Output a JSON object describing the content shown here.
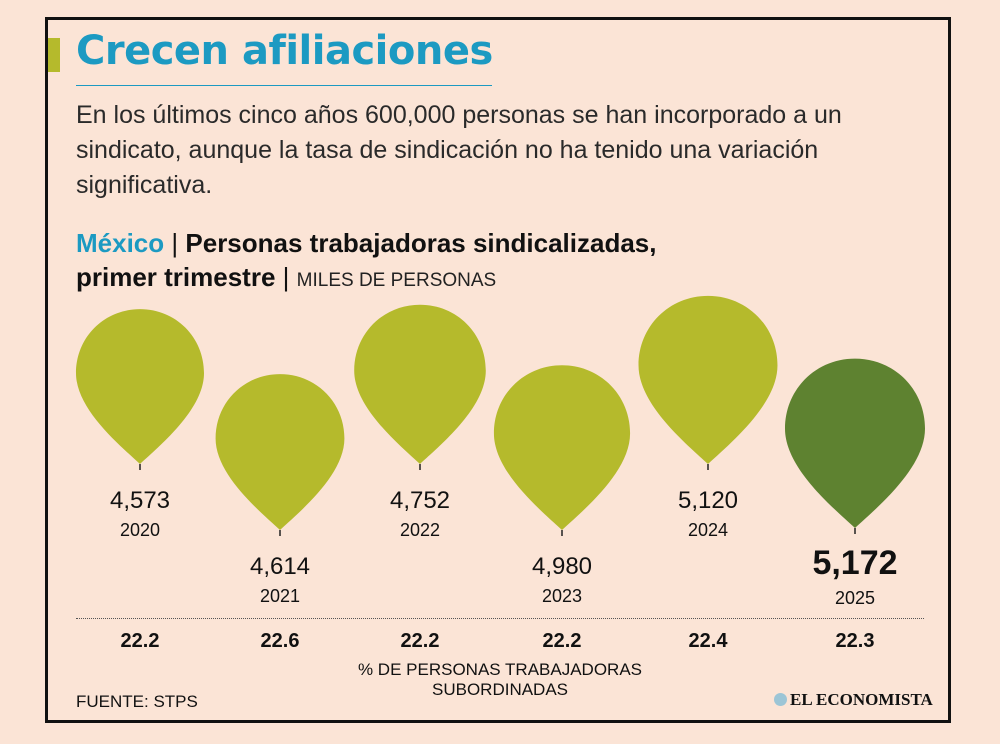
{
  "header": {
    "title": "Crecen afiliaciones",
    "subtitle": "En los últimos cinco años 600,000 personas se han incorporado a un sindicato, aunque la tasa de sindicación no ha tenido una variación significativa."
  },
  "chart_heading": {
    "country": "México",
    "separator": "|",
    "title_line1": "Personas trabajadoras sindicalizadas,",
    "title_line2": "primer trimestre",
    "unit": "MILES DE PERSONAS"
  },
  "chart_data": {
    "type": "bar",
    "categories": [
      "2020",
      "2021",
      "2022",
      "2023",
      "2024",
      "2025"
    ],
    "values": [
      4573,
      4614,
      4752,
      4980,
      5120,
      5172
    ],
    "value_labels": [
      "4,573",
      "4,614",
      "4,752",
      "4,980",
      "5,120",
      "5,172"
    ],
    "highlight_index": 5,
    "secondary_series": {
      "caption": "% DE PERSONAS TRABAJADORAS SUBORDINADAS",
      "values": [
        "22.2",
        "22.6",
        "22.2",
        "22.2",
        "22.4",
        "22.3"
      ]
    },
    "colors": {
      "balloon": "#b5ba2c",
      "highlight": "#5e8230"
    }
  },
  "footer": {
    "source": "FUENTE: STPS",
    "brand": "EL ECONOMISTA"
  },
  "colors": {
    "background": "#fbe4d6",
    "accent": "#1c9ac2",
    "bar_accent": "#b5ba2c"
  }
}
